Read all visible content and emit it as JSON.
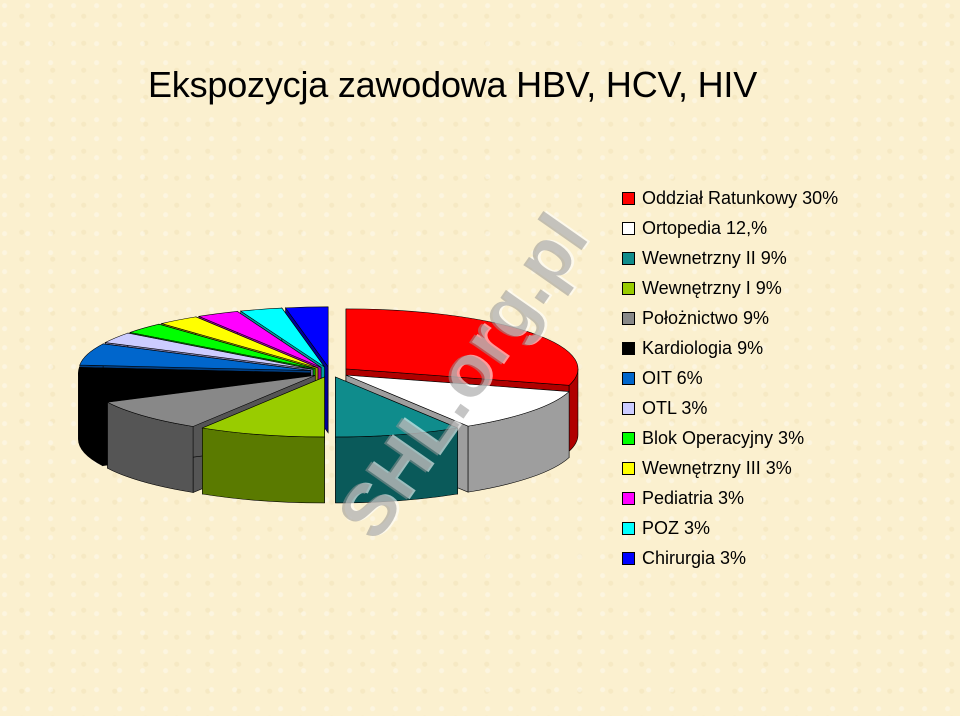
{
  "title": "Ekspozycja zawodowa HBV, HCV, HIV",
  "watermark": "SHL.org.pl",
  "chart_data": {
    "type": "pie",
    "style": "3d-exploded",
    "legend_position": "right",
    "slices": [
      {
        "label": "Oddział Ratunkowy 30%",
        "value": 30,
        "color": "#ff0000",
        "side": "#b00000"
      },
      {
        "label": "Ortopedia 12,%",
        "value": 12,
        "color": "#ffffff",
        "side": "#9e9e9e"
      },
      {
        "label": "Wewnetrzny II 9%",
        "value": 9,
        "color": "#0f8c8c",
        "side": "#0a5a5a"
      },
      {
        "label": "Wewnętrzny I 9%",
        "value": 9,
        "color": "#99cc00",
        "side": "#5a7a00"
      },
      {
        "label": "Położnictwo 9%",
        "value": 9,
        "color": "#888888",
        "side": "#555555"
      },
      {
        "label": "Kardiologia 9%",
        "value": 9,
        "color": "#000000",
        "side": "#000000"
      },
      {
        "label": "OIT 6%",
        "value": 6,
        "color": "#0066cc",
        "side": "#003d80"
      },
      {
        "label": "OTL 3%",
        "value": 3,
        "color": "#ccccff",
        "side": "#8080b3"
      },
      {
        "label": "Blok Operacyjny 3%",
        "value": 3,
        "color": "#00ff00",
        "side": "#00a000"
      },
      {
        "label": "Wewnętrzny III 3%",
        "value": 3,
        "color": "#ffff00",
        "side": "#a0a000"
      },
      {
        "label": "Pediatria 3%",
        "value": 3,
        "color": "#ff00ff",
        "side": "#a000a0"
      },
      {
        "label": "POZ 3%",
        "value": 3,
        "color": "#00ffff",
        "side": "#00a0a0"
      },
      {
        "label": "Chirurgia 3%",
        "value": 3,
        "color": "#0000ff",
        "side": "#000099"
      }
    ]
  }
}
